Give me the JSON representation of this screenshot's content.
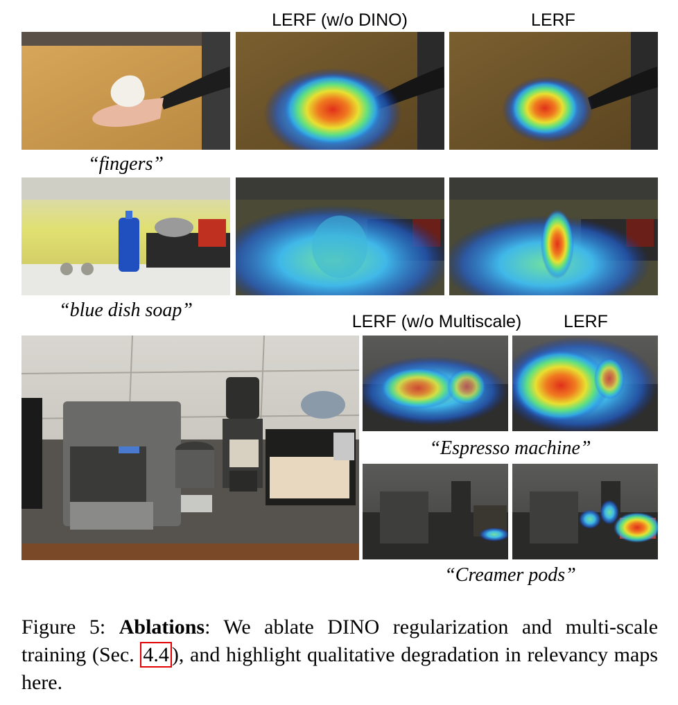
{
  "row1": {
    "col_headers": [
      "LERF (w/o DINO)",
      "LERF"
    ],
    "query": "“fingers”"
  },
  "row2": {
    "query": "“blue dish soap”"
  },
  "row3": {
    "col_headers": [
      "LERF (w/o Multiscale)",
      "LERF"
    ],
    "queries": [
      "“Espresso machine”",
      "“Creamer pods”"
    ]
  },
  "caption": {
    "label": "Figure 5:",
    "bold": "Ablations",
    "text_before_ref": ": We ablate DINO regularization and multi-scale training (Sec. ",
    "ref": "4.4",
    "text_after_ref": "), and highlight qualitative degradation in relevancy maps here."
  }
}
